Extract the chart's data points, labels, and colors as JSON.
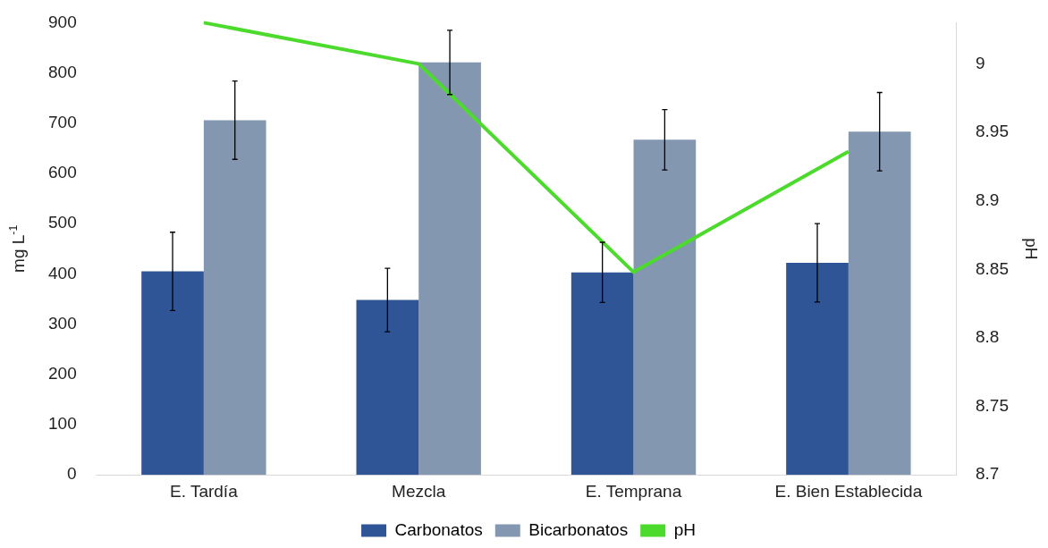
{
  "chart_data": {
    "type": "bar",
    "categories": [
      "E. Tardía",
      "Mezcla",
      "E. Temprana",
      "E. Bien Establecida"
    ],
    "ylabel": "mg L$^{-1}$",
    "y2label": "pH",
    "ylim": [
      0,
      900
    ],
    "yticks": [
      0,
      100,
      200,
      300,
      400,
      500,
      600,
      700,
      800,
      900
    ],
    "y2lim": [
      8.7,
      9.03
    ],
    "y2ticks": [
      8.7,
      8.75,
      8.8,
      8.85,
      8.9,
      8.95,
      9
    ],
    "grid": false,
    "legend": "bottom",
    "marker": "none",
    "series": [
      {
        "name": "Carbonatos",
        "color": "#2f5597",
        "values": [
          405,
          348,
          403,
          422
        ],
        "errors": [
          78,
          63,
          60,
          78
        ]
      },
      {
        "name": "Bicarbonatos",
        "color": "#8497b0",
        "values": [
          706,
          821,
          667,
          683
        ],
        "errors": [
          78,
          64,
          60,
          78
        ]
      },
      {
        "name": "pH",
        "type": "line",
        "axis": "y2",
        "color": "#4cdb2c",
        "values": [
          9.03,
          9.0,
          8.848,
          8.936
        ]
      }
    ]
  }
}
